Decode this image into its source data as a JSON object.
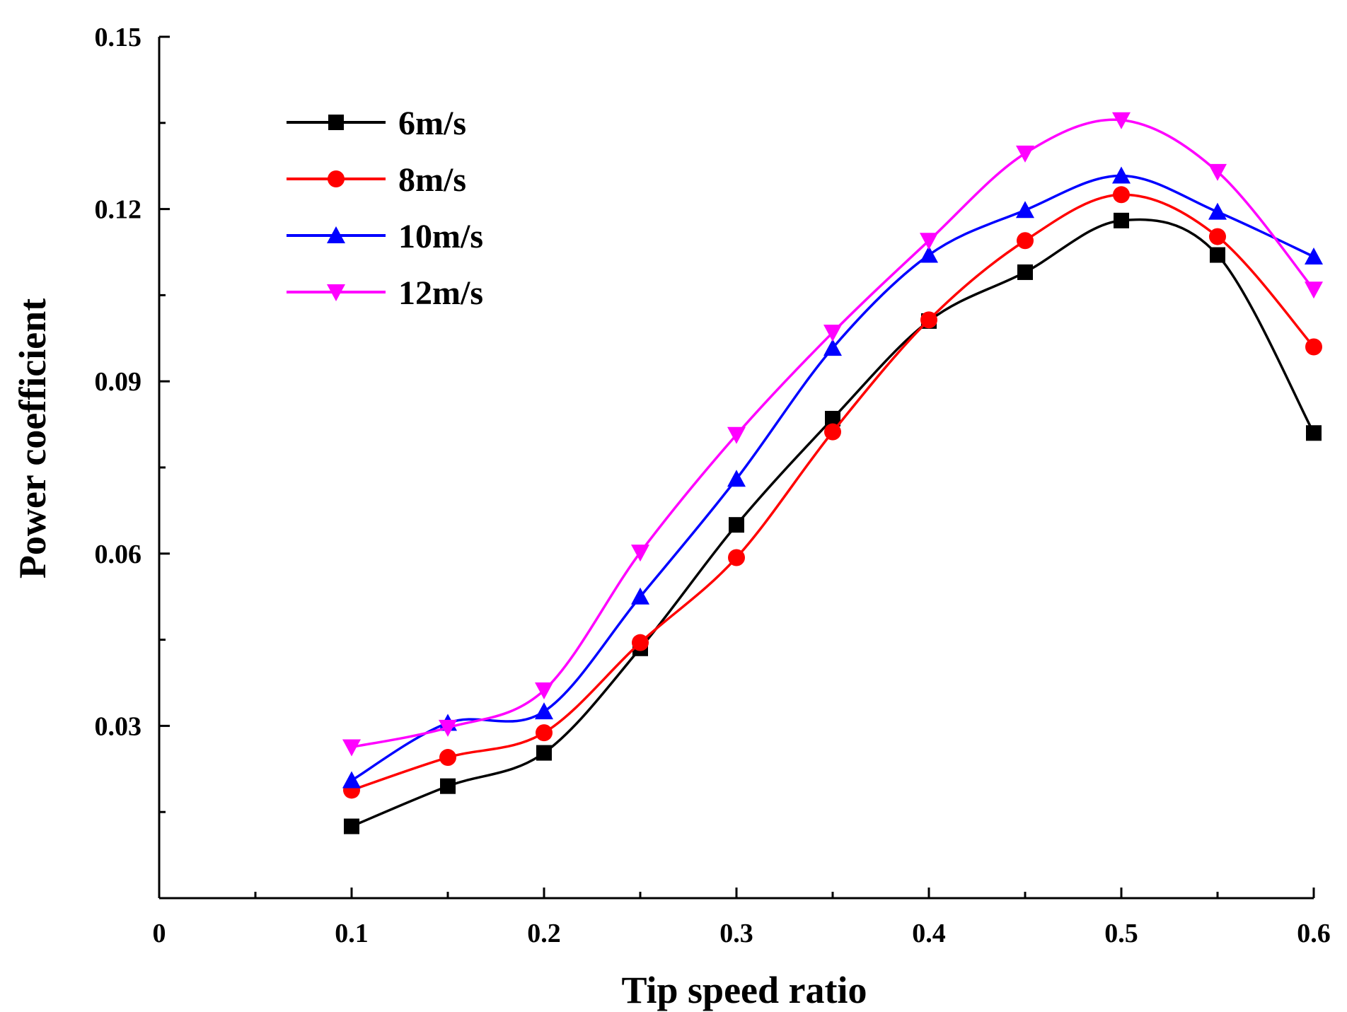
{
  "chart_data": {
    "type": "line",
    "title": "",
    "xlabel": "Tip speed ratio",
    "ylabel": "Power coefficient",
    "xlim": [
      0,
      0.6
    ],
    "ylim": [
      0,
      0.15
    ],
    "xticks": [
      "0",
      "0.1",
      "0.2",
      "0.3",
      "0.4",
      "0.5",
      "0.6"
    ],
    "yticks": [
      "0.03",
      "0.06",
      "0.09",
      "0.12",
      "0.15"
    ],
    "grid": false,
    "legend_position": "top-left",
    "x": [
      0.1,
      0.15,
      0.2,
      0.25,
      0.3,
      0.35,
      0.4,
      0.45,
      0.5,
      0.55,
      0.6
    ],
    "series": [
      {
        "name": "6m/s",
        "color": "#000000",
        "marker": "square",
        "values": [
          0.0125,
          0.0195,
          0.0253,
          0.0435,
          0.065,
          0.0835,
          0.1005,
          0.109,
          0.118,
          0.112,
          0.081
        ]
      },
      {
        "name": "8m/s",
        "color": "#ff0000",
        "marker": "circle",
        "values": [
          0.0188,
          0.0245,
          0.0288,
          0.0445,
          0.0593,
          0.0812,
          0.1007,
          0.1145,
          0.1225,
          0.1152,
          0.096
        ]
      },
      {
        "name": "10m/s",
        "color": "#0000ff",
        "marker": "triangle-up",
        "values": [
          0.0205,
          0.0305,
          0.0325,
          0.0525,
          0.073,
          0.0958,
          0.112,
          0.1198,
          0.1258,
          0.1195,
          0.1117
        ]
      },
      {
        "name": "12m/s",
        "color": "#ff00ff",
        "marker": "triangle-down",
        "values": [
          0.0263,
          0.0297,
          0.0362,
          0.0602,
          0.0807,
          0.0985,
          0.1145,
          0.1297,
          0.1355,
          0.1265,
          0.106
        ]
      }
    ]
  }
}
